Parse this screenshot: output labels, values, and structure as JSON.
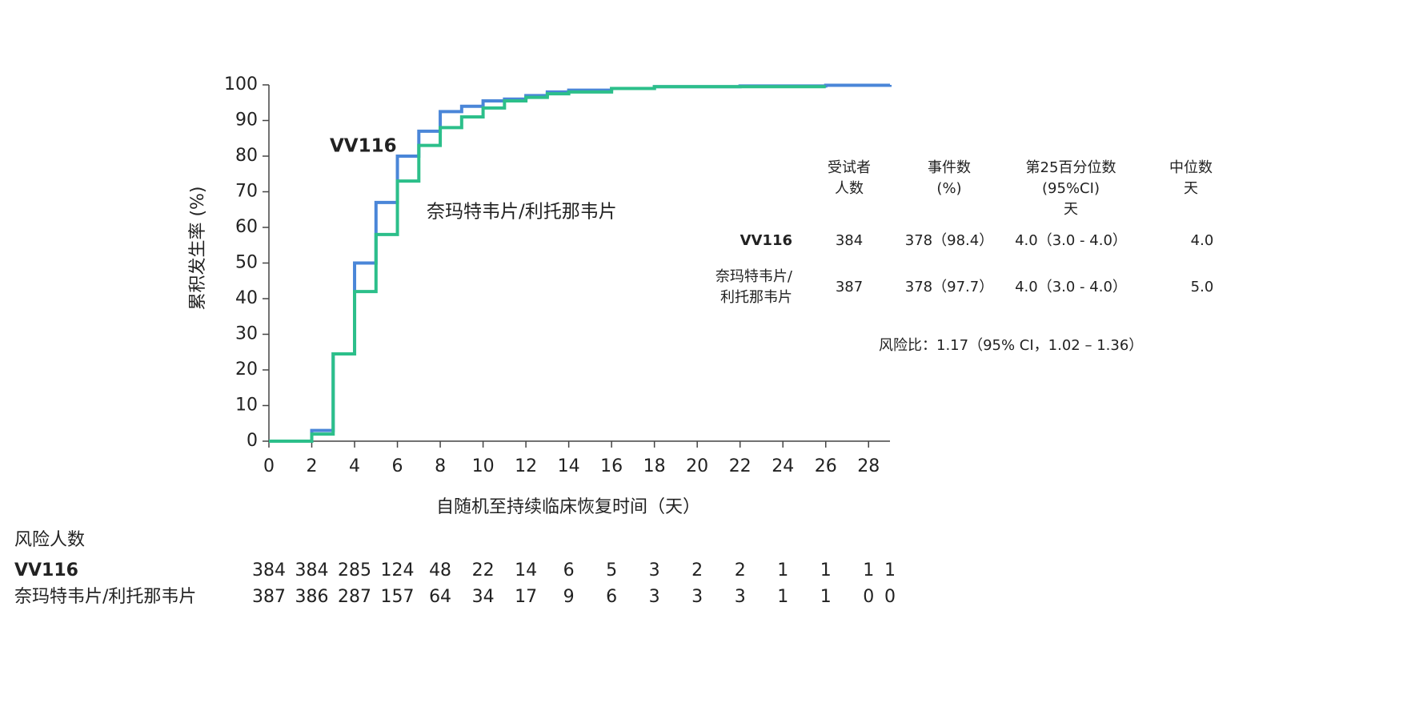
{
  "chart_data": {
    "type": "line",
    "step": true,
    "y_label": "累积发生率 (%)",
    "x_label": "自随机至持续临床恢复时间（天）",
    "xlim": [
      0,
      29
    ],
    "ylim": [
      0,
      100
    ],
    "xticks": [
      0,
      2,
      4,
      6,
      8,
      10,
      12,
      14,
      16,
      18,
      20,
      22,
      24,
      26,
      28
    ],
    "yticks": [
      0,
      10,
      20,
      30,
      40,
      50,
      60,
      70,
      80,
      90,
      100
    ],
    "series": [
      {
        "name": "VV116",
        "color": "#4a86d8",
        "x": [
          0,
          2,
          3,
          4,
          5,
          6,
          7,
          8,
          9,
          10,
          11,
          12,
          13,
          14,
          16,
          18,
          22,
          26,
          29
        ],
        "values": [
          0,
          3,
          24.5,
          50,
          67,
          80,
          87,
          92.5,
          94,
          95.5,
          96,
          97,
          98,
          98.5,
          99,
          99.5,
          99.7,
          99.9,
          100
        ]
      },
      {
        "name": "奈玛特韦片/利托那韦片",
        "color": "#2cbf8a",
        "x": [
          0,
          2,
          3,
          4,
          5,
          6,
          7,
          8,
          9,
          10,
          11,
          12,
          13,
          14,
          16,
          18,
          22,
          26
        ],
        "values": [
          0,
          2,
          24.5,
          42,
          58,
          73,
          83,
          88,
          91,
          93.5,
          95.5,
          96.5,
          97.5,
          98,
          99,
          99.5,
          99.5,
          99.5
        ]
      }
    ],
    "stats_table": {
      "headers": [
        [
          "受试者",
          "人数"
        ],
        [
          "事件数",
          "(%)"
        ],
        [
          "第25百分位数",
          "(95%CI)",
          "天"
        ],
        [
          "中位数",
          "天"
        ]
      ],
      "rows": [
        {
          "label": [
            "VV116"
          ],
          "cells": [
            "384",
            "378（98.4）",
            "4.0（3.0 - 4.0）",
            "4.0"
          ]
        },
        {
          "label": [
            "奈玛特韦片/",
            "利托那韦片"
          ],
          "cells": [
            "387",
            "378（97.7）",
            "4.0（3.0 - 4.0）",
            "5.0"
          ]
        }
      ],
      "hazard_ratio": "风险比：1.17（95% CI，1.02 – 1.36）"
    },
    "risk_table": {
      "title": "风险人数",
      "x": [
        0,
        2,
        4,
        6,
        8,
        10,
        12,
        14,
        16,
        18,
        20,
        22,
        24,
        26,
        28,
        29
      ],
      "rows": [
        {
          "name": "VV116",
          "values": [
            384,
            384,
            285,
            124,
            48,
            22,
            14,
            6,
            5,
            3,
            2,
            2,
            1,
            1,
            1,
            1
          ]
        },
        {
          "name": "奈玛特韦片/利托那韦片",
          "values": [
            387,
            386,
            287,
            157,
            64,
            34,
            17,
            9,
            6,
            3,
            3,
            3,
            1,
            1,
            0,
            0
          ]
        }
      ]
    }
  }
}
